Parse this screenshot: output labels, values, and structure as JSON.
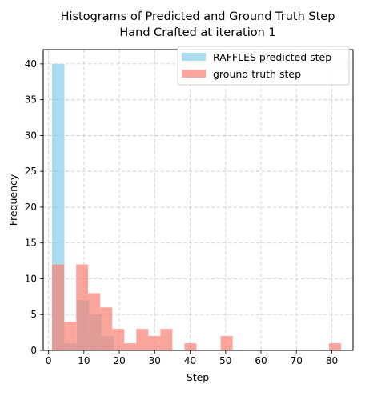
{
  "chart_data": {
    "type": "bar",
    "title_line1": "Histograms of Predicted and Ground Truth Step",
    "title_line2": "Hand Crafted at iteration 1",
    "xlabel": "Step",
    "ylabel": "Frequency",
    "xlim": [
      -1.5,
      86
    ],
    "ylim": [
      0,
      42
    ],
    "xticks": [
      0,
      10,
      20,
      30,
      40,
      50,
      60,
      70,
      80
    ],
    "yticks": [
      0,
      5,
      10,
      15,
      20,
      25,
      30,
      35,
      40
    ],
    "grid": true,
    "legend_position": "top-right",
    "series": [
      {
        "name": "RAFFLES predicted step",
        "color": "#87ceeb",
        "bins": [
          {
            "x0": 1.0,
            "x1": 4.5,
            "count": 40
          },
          {
            "x0": 4.5,
            "x1": 8.0,
            "count": 1
          },
          {
            "x0": 8.0,
            "x1": 11.5,
            "count": 7
          },
          {
            "x0": 11.5,
            "x1": 15.0,
            "count": 5
          },
          {
            "x0": 15.0,
            "x1": 18.5,
            "count": 2
          },
          {
            "x0": 18.5,
            "x1": 22.0,
            "count": 0
          }
        ]
      },
      {
        "name": "ground truth step",
        "color": "#fa8072",
        "bins": [
          {
            "x0": 1.0,
            "x1": 4.4,
            "count": 12
          },
          {
            "x0": 4.4,
            "x1": 7.8,
            "count": 4
          },
          {
            "x0": 7.8,
            "x1": 11.2,
            "count": 12
          },
          {
            "x0": 11.2,
            "x1": 14.6,
            "count": 8
          },
          {
            "x0": 14.6,
            "x1": 18.0,
            "count": 6
          },
          {
            "x0": 18.0,
            "x1": 21.4,
            "count": 3
          },
          {
            "x0": 21.4,
            "x1": 24.8,
            "count": 1
          },
          {
            "x0": 24.8,
            "x1": 28.2,
            "count": 3
          },
          {
            "x0": 28.2,
            "x1": 31.6,
            "count": 2
          },
          {
            "x0": 31.6,
            "x1": 35.0,
            "count": 3
          },
          {
            "x0": 35.0,
            "x1": 38.4,
            "count": 0
          },
          {
            "x0": 38.4,
            "x1": 41.8,
            "count": 1
          },
          {
            "x0": 41.8,
            "x1": 45.2,
            "count": 0
          },
          {
            "x0": 45.2,
            "x1": 48.6,
            "count": 0
          },
          {
            "x0": 48.6,
            "x1": 52.0,
            "count": 2
          },
          {
            "x0": 52.0,
            "x1": 55.4,
            "count": 0
          },
          {
            "x0": 55.4,
            "x1": 58.8,
            "count": 0
          },
          {
            "x0": 58.8,
            "x1": 62.2,
            "count": 0
          },
          {
            "x0": 62.2,
            "x1": 65.6,
            "count": 0
          },
          {
            "x0": 65.6,
            "x1": 69.0,
            "count": 0
          },
          {
            "x0": 69.0,
            "x1": 72.4,
            "count": 0
          },
          {
            "x0": 72.4,
            "x1": 75.8,
            "count": 0
          },
          {
            "x0": 75.8,
            "x1": 79.2,
            "count": 0
          },
          {
            "x0": 79.2,
            "x1": 82.6,
            "count": 1
          }
        ]
      }
    ]
  }
}
